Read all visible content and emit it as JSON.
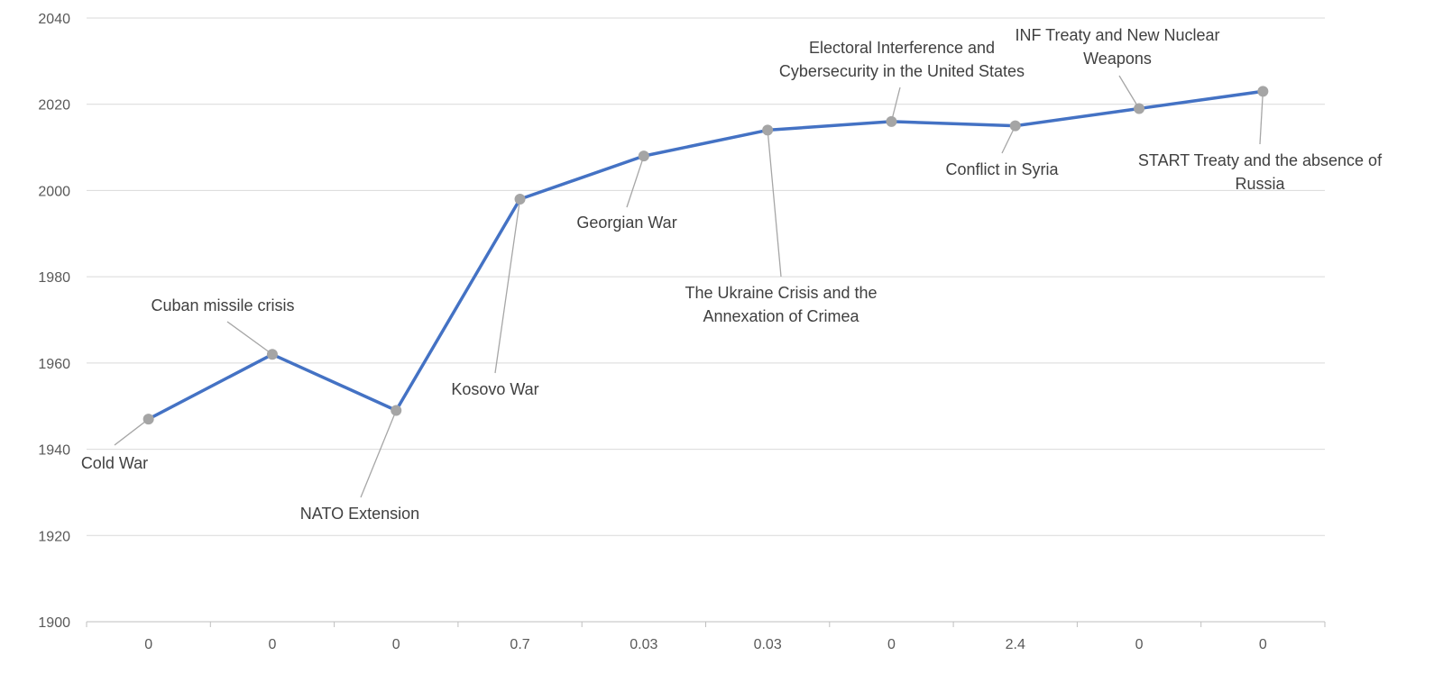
{
  "chart_data": {
    "type": "line",
    "title": "",
    "xlabel": "",
    "ylabel": "",
    "ylim": [
      1900,
      2040
    ],
    "y_ticks": [
      1900,
      1920,
      1940,
      1960,
      1980,
      2000,
      2020,
      2040
    ],
    "grid": true,
    "legend": "none",
    "series_color": "#4472C4",
    "marker_color": "#a5a5a5",
    "categories": [
      "0",
      "0",
      "0",
      "0.7",
      "0.03",
      "0.03",
      "0",
      "2.4",
      "0",
      "0"
    ],
    "series": [
      {
        "values": [
          1947,
          1962,
          1949,
          1998,
          2008,
          2014,
          2016,
          2015,
          2019,
          2023
        ]
      }
    ],
    "annotations": [
      {
        "text": [
          "Cold War"
        ]
      },
      {
        "text": [
          "Cuban missile crisis"
        ]
      },
      {
        "text": [
          "NATO Extension"
        ]
      },
      {
        "text": [
          "Kosovo War"
        ]
      },
      {
        "text": [
          "Georgian War"
        ]
      },
      {
        "text": [
          "The Ukraine Crisis and the",
          "Annexation of Crimea"
        ]
      },
      {
        "text": [
          "Electoral Interference and",
          "Cybersecurity in the United States"
        ]
      },
      {
        "text": [
          "Conflict in Syria"
        ]
      },
      {
        "text": [
          "INF Treaty and New Nuclear",
          "Weapons"
        ]
      },
      {
        "text": [
          "START Treaty and the absence of",
          "Russia"
        ]
      }
    ]
  }
}
